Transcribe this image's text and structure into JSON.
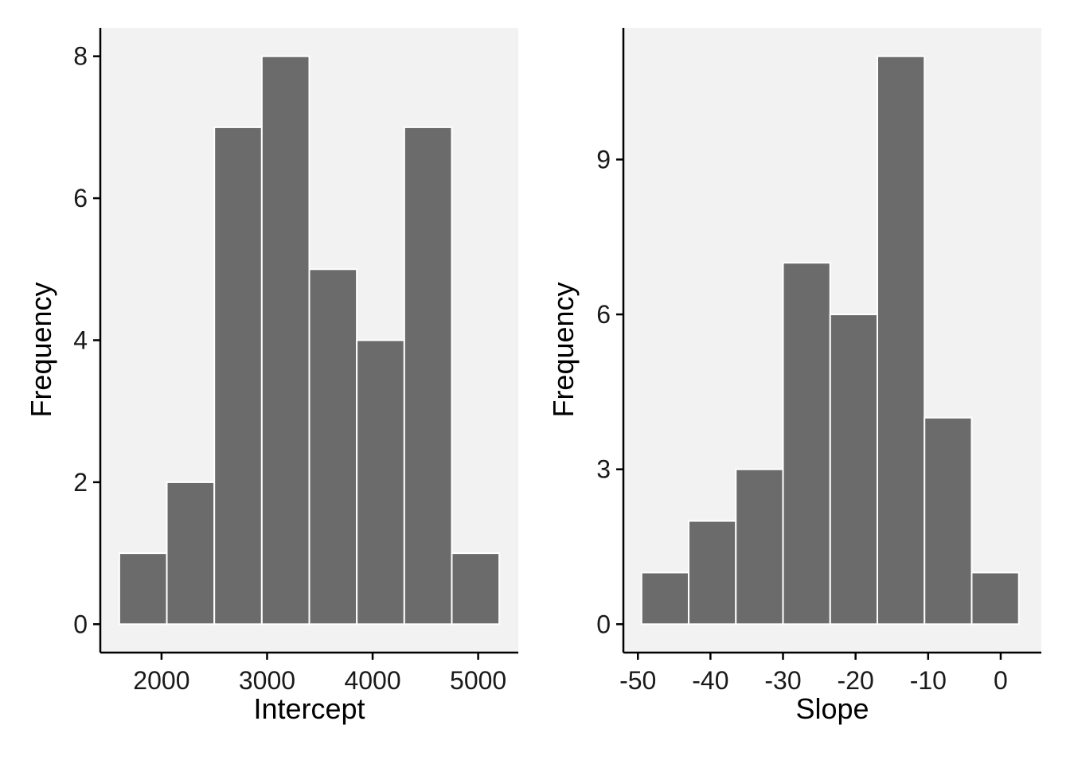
{
  "chart_data": [
    {
      "type": "bar",
      "xlabel": "Intercept",
      "ylabel": "Frequency",
      "bins": [
        {
          "x0": 1600,
          "x1": 2050,
          "count": 1
        },
        {
          "x0": 2050,
          "x1": 2500,
          "count": 2
        },
        {
          "x0": 2500,
          "x1": 2950,
          "count": 7
        },
        {
          "x0": 2950,
          "x1": 3400,
          "count": 8
        },
        {
          "x0": 3400,
          "x1": 3850,
          "count": 5
        },
        {
          "x0": 3850,
          "x1": 4300,
          "count": 4
        },
        {
          "x0": 4300,
          "x1": 4750,
          "count": 7
        },
        {
          "x0": 4750,
          "x1": 5200,
          "count": 1
        }
      ],
      "xlim": [
        1420,
        5380
      ],
      "ylim": [
        -0.4,
        8.4
      ],
      "xticks": [
        2000,
        3000,
        4000,
        5000
      ],
      "xtick_labels": [
        "2000",
        "3000",
        "4000",
        "5000"
      ],
      "yticks": [
        0,
        2,
        4,
        6,
        8
      ],
      "ytick_labels": [
        "0",
        "2",
        "4",
        "6",
        "8"
      ],
      "grid": false,
      "colors": {
        "bar": "#6b6b6b",
        "bar_edge": "#ffffff",
        "panel": "#f2f2f2"
      }
    },
    {
      "type": "bar",
      "xlabel": "Slope",
      "ylabel": "Frequency",
      "bins": [
        {
          "x0": -49.5,
          "x1": -43,
          "count": 1
        },
        {
          "x0": -43,
          "x1": -36.5,
          "count": 2
        },
        {
          "x0": -36.5,
          "x1": -30,
          "count": 3
        },
        {
          "x0": -30,
          "x1": -23.5,
          "count": 7
        },
        {
          "x0": -23.5,
          "x1": -17,
          "count": 6
        },
        {
          "x0": -17,
          "x1": -10.5,
          "count": 11
        },
        {
          "x0": -10.5,
          "x1": -4,
          "count": 4
        },
        {
          "x0": -4,
          "x1": 2.5,
          "count": 1
        }
      ],
      "xlim": [
        -52,
        5.6
      ],
      "ylim": [
        -0.55,
        11.55
      ],
      "xticks": [
        -50,
        -40,
        -30,
        -20,
        -10,
        0
      ],
      "xtick_labels": [
        "-50",
        "-40",
        "-30",
        "-20",
        "-10",
        "0"
      ],
      "yticks": [
        0,
        3,
        6,
        9
      ],
      "ytick_labels": [
        "0",
        "3",
        "6",
        "9"
      ],
      "grid": false,
      "colors": {
        "bar": "#6b6b6b",
        "bar_edge": "#ffffff",
        "panel": "#f2f2f2"
      }
    }
  ]
}
